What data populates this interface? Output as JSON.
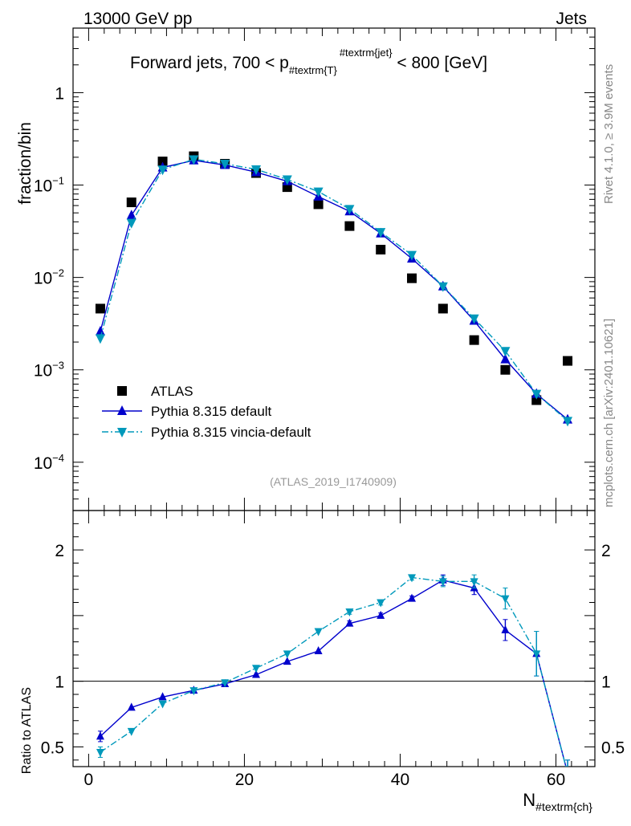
{
  "header": {
    "left": "13000 GeV pp",
    "right": "Jets"
  },
  "side_labels": {
    "rivet": "Rivet 4.1.0, ≥ 3.9M events",
    "mcplots": "mcplots.cern.ch [arXiv:2401.10621]"
  },
  "chart_data": {
    "type": "line",
    "title_main": "Forward jets, 700 < p",
    "title_sub": "#textrm{T}",
    "title_sup": "#textrm{jet}",
    "title_end": " < 800 [GeV]",
    "analysis_tag": "(ATLAS_2019_I1740909)",
    "xlabel_main": "N",
    "xlabel_sub": "#textrm{ch}",
    "ylabel_top": "fraction/bin",
    "ylabel_bottom": "Ratio to ATLAS",
    "xlim": [
      -2,
      65
    ],
    "ylim_top": [
      3e-05,
      5
    ],
    "ylim_bottom": [
      0.35,
      2.3
    ],
    "top_y_ticks": [
      {
        "v": 1,
        "base": "1",
        "exp": ""
      },
      {
        "v": 0.1,
        "base": "10",
        "exp": "−1"
      },
      {
        "v": 0.01,
        "base": "10",
        "exp": "−2"
      },
      {
        "v": 0.001,
        "base": "10",
        "exp": "−3"
      },
      {
        "v": 0.0001,
        "base": "10",
        "exp": "−4"
      }
    ],
    "bottom_y_ticks": [
      {
        "v": 2,
        "label": "2"
      },
      {
        "v": 1,
        "label": "1"
      },
      {
        "v": 0.5,
        "label": "0.5"
      }
    ],
    "x_ticks": [
      {
        "v": 0,
        "label": "0"
      },
      {
        "v": 20,
        "label": "20"
      },
      {
        "v": 40,
        "label": "40"
      },
      {
        "v": 60,
        "label": "60"
      }
    ],
    "x": [
      1.5,
      5.5,
      9.5,
      13.5,
      17.5,
      21.5,
      25.5,
      29.5,
      33.5,
      37.5,
      41.5,
      45.5,
      49.5,
      53.5,
      57.5,
      61.5
    ],
    "series": [
      {
        "name": "ATLAS",
        "marker": "square",
        "color": "#000000",
        "values": [
          0.0046,
          0.065,
          0.18,
          0.205,
          0.17,
          0.135,
          0.095,
          0.062,
          0.036,
          0.02,
          0.0098,
          0.0046,
          0.0021,
          0.001,
          0.00047,
          0.00125
        ]
      },
      {
        "name": "Pythia 8.315 default",
        "marker": "triangle-up",
        "linestyle": "solid",
        "color": "#0000cc",
        "values": [
          0.0026,
          0.047,
          0.155,
          0.185,
          0.165,
          0.138,
          0.11,
          0.075,
          0.052,
          0.03,
          0.016,
          0.008,
          0.0034,
          0.0013,
          0.00055,
          0.00029
        ],
        "ratio": [
          0.58,
          0.8,
          0.88,
          0.93,
          0.98,
          1.05,
          1.15,
          1.23,
          1.44,
          1.5,
          1.63,
          1.77,
          1.71,
          1.39,
          1.21,
          0.3
        ],
        "ratio_err": [
          0.04,
          0.01,
          0.01,
          0.01,
          0.01,
          0.01,
          0.01,
          0.01,
          0.02,
          0.02,
          0.02,
          0.04,
          0.05,
          0.08,
          0.17,
          0.1
        ]
      },
      {
        "name": "Pythia 8.315 vincia-default",
        "marker": "triangle-down",
        "linestyle": "dashdot",
        "color": "#0099bb",
        "values": [
          0.0022,
          0.039,
          0.147,
          0.19,
          0.17,
          0.148,
          0.115,
          0.085,
          0.055,
          0.031,
          0.0175,
          0.008,
          0.0036,
          0.0016,
          0.00055,
          0.00028
        ],
        "ratio": [
          0.46,
          0.62,
          0.83,
          0.93,
          0.99,
          1.1,
          1.21,
          1.38,
          1.53,
          1.6,
          1.79,
          1.76,
          1.76,
          1.63,
          1.21,
          0.3
        ],
        "ratio_err": [
          0.04,
          0.01,
          0.01,
          0.01,
          0.01,
          0.01,
          0.01,
          0.01,
          0.02,
          0.02,
          0.02,
          0.04,
          0.05,
          0.08,
          0.17,
          0.1
        ]
      }
    ]
  }
}
